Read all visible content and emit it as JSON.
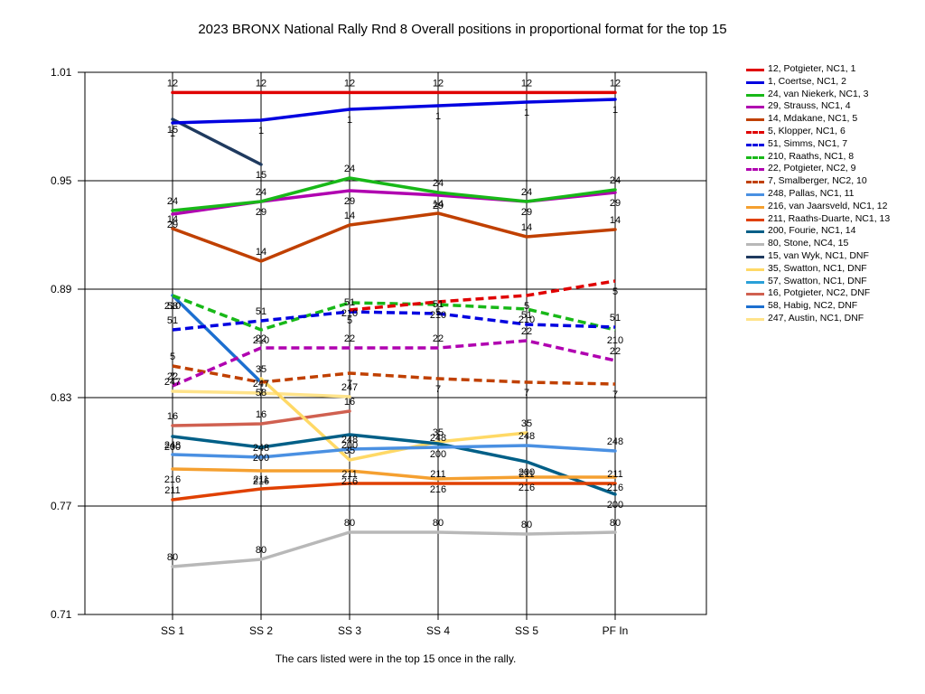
{
  "chart_data": {
    "type": "line",
    "title": "2023 BRONX National Rally Rnd 8  Overall positions in proportional format for the top 15",
    "footnote": "The cars listed were in the top 15 once in the rally.",
    "categories": [
      "SS 1",
      "SS 2",
      "SS 3",
      "SS 4",
      "SS 5",
      "PF In"
    ],
    "ylim": [
      0.71,
      1.01
    ],
    "yticks": [
      "1.01",
      "0.95",
      "0.89",
      "0.83",
      "0.77",
      "0.71"
    ],
    "grid": true,
    "legend_position": "right",
    "series": [
      {
        "name": "12, Potgieter, NC1, 1",
        "label": "12",
        "color": "#e00000",
        "dash": false,
        "values": [
          0.9988,
          0.9988,
          0.9988,
          0.9988,
          0.9988,
          0.9988
        ]
      },
      {
        "name": "1, Coertse, NC1, 2",
        "label": "1",
        "color": "#0000e0",
        "dash": false,
        "values": [
          0.982,
          0.9835,
          0.9895,
          0.9915,
          0.9935,
          0.995
        ]
      },
      {
        "name": "24, van Niekerk, NC1, 3",
        "label": "24",
        "color": "#18b818",
        "dash": false,
        "values": [
          0.9335,
          0.9385,
          0.9515,
          0.9435,
          0.9385,
          0.945
        ]
      },
      {
        "name": "29, Strauss, NC1, 4",
        "label": "29",
        "color": "#b000b0",
        "dash": false,
        "values": [
          0.9315,
          0.9385,
          0.9445,
          0.942,
          0.9385,
          0.9435
        ]
      },
      {
        "name": "14, Mdakane, NC1, 5",
        "label": "14",
        "color": "#c04000",
        "dash": false,
        "values": [
          0.9235,
          0.9055,
          0.9255,
          0.932,
          0.919,
          0.923
        ]
      },
      {
        "name": "5, Klopper, NC1, 6",
        "label": "5",
        "color": "#e00000",
        "dash": true,
        "values": [
          0.8585,
          null,
          0.8785,
          0.883,
          0.8865,
          0.8945
        ]
      },
      {
        "name": "51, Simms, NC1, 7",
        "label": "51",
        "color": "#0000e0",
        "dash": true,
        "values": [
          0.8675,
          0.8725,
          0.8775,
          0.8765,
          0.8705,
          0.869
        ]
      },
      {
        "name": "210, Raaths, NC1, 8",
        "label": "210",
        "color": "#18b818",
        "dash": true,
        "values": [
          0.8865,
          0.8675,
          0.8825,
          0.8815,
          0.879,
          0.8675
        ]
      },
      {
        "name": "22, Potgieter, NC2, 9",
        "label": "22",
        "color": "#b000b0",
        "dash": true,
        "values": [
          0.8365,
          0.8575,
          0.8575,
          0.8575,
          0.8615,
          0.8505
        ]
      },
      {
        "name": "7, Smalberger, NC2, 10",
        "label": "7",
        "color": "#c04000",
        "dash": true,
        "values": [
          0.8475,
          0.8385,
          0.8435,
          0.8405,
          0.8385,
          0.8375
        ]
      },
      {
        "name": "248, Pallas, NC1, 11",
        "label": "248",
        "color": "#4a90e2",
        "dash": false,
        "values": [
          0.7985,
          0.797,
          0.8015,
          0.8025,
          0.8035,
          0.8005
        ]
      },
      {
        "name": "216, van Jaarsveld, NC1, 12",
        "label": "216",
        "color": "#f5a030",
        "dash": false,
        "values": [
          0.7905,
          0.7895,
          0.7895,
          0.785,
          0.786,
          0.786
        ]
      },
      {
        "name": "211, Raaths-Duarte, NC1, 13",
        "label": "211",
        "color": "#e04000",
        "dash": false,
        "values": [
          0.7735,
          0.7795,
          0.7825,
          0.7825,
          0.7825,
          0.7825
        ]
      },
      {
        "name": "200, Fourie, NC1, 14",
        "label": "200",
        "color": "#005f87",
        "dash": false,
        "values": [
          0.8085,
          0.8025,
          0.8095,
          0.8045,
          0.7945,
          0.7765
        ]
      },
      {
        "name": "80, Stone, NC4, 15",
        "label": "80",
        "color": "#b8b8b8",
        "dash": false,
        "values": [
          0.7365,
          0.7405,
          0.7555,
          0.7555,
          0.7545,
          0.7555
        ]
      },
      {
        "name": "15, van Wyk, NC1,  DNF",
        "label": "15",
        "color": "#1f3a5f",
        "dash": false,
        "values": [
          0.984,
          0.959,
          null,
          null,
          null,
          null
        ]
      },
      {
        "name": "35, Swatton, NC1,  DNF",
        "label": "35",
        "color": "#ffd966",
        "dash": false,
        "values": [
          null,
          0.8405,
          0.7955,
          0.8055,
          0.8105,
          null
        ]
      },
      {
        "name": "57, Swatton, NC1,  DNF",
        "label": "57",
        "color": "#2aa0d8",
        "dash": false,
        "values": [
          null,
          null,
          null,
          null,
          null,
          null
        ]
      },
      {
        "name": "16, Potgieter, NC2,  DNF",
        "label": "16",
        "color": "#d06050",
        "dash": false,
        "values": [
          0.8145,
          0.8155,
          0.8225,
          null,
          null,
          null
        ]
      },
      {
        "name": "58, Habig, NC2,  DNF",
        "label": "58",
        "color": "#1c6fd0",
        "dash": false,
        "values": [
          0.8865,
          0.8385,
          null,
          null,
          null,
          null
        ]
      },
      {
        "name": "247, Austin, NC1,  DNF",
        "label": "247",
        "color": "#ffe38a",
        "dash": false,
        "values": [
          0.8335,
          0.8325,
          0.8305,
          null,
          null,
          null
        ]
      }
    ]
  }
}
